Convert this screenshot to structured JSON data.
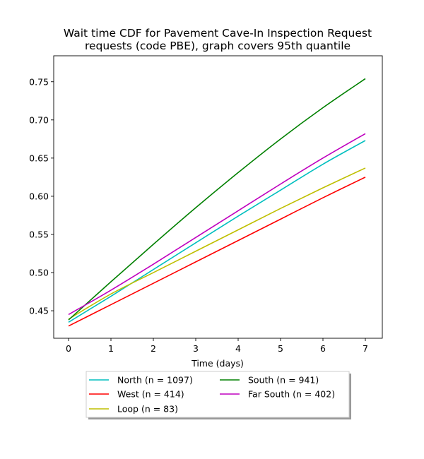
{
  "chart_data": {
    "type": "line",
    "title": "Wait time CDF for Pavement Cave-In Inspection Request\nrequests (code PBE), graph covers 95th quantile",
    "xlabel": "Time (days)",
    "ylabel": "",
    "xlim": [
      -0.35,
      7.4
    ],
    "ylim": [
      0.414,
      0.784
    ],
    "xticks": [
      0,
      1,
      2,
      3,
      4,
      5,
      6,
      7
    ],
    "yticks": [
      0.45,
      0.5,
      0.55,
      0.6,
      0.65,
      0.7,
      0.75
    ],
    "x": [
      0,
      1,
      2,
      3,
      4,
      5,
      6,
      7
    ],
    "grid": false,
    "legend_placement": "bottom-center-outside",
    "series": [
      {
        "name": "North (n = 1097)",
        "color": "#00bfbf",
        "values": [
          0.435,
          0.469,
          0.504,
          0.539,
          0.574,
          0.608,
          0.642,
          0.673
        ]
      },
      {
        "name": "West (n = 414)",
        "color": "#ff0000",
        "values": [
          0.43,
          0.458,
          0.486,
          0.514,
          0.542,
          0.57,
          0.598,
          0.625
        ]
      },
      {
        "name": "Loop (n = 83)",
        "color": "#bfbf00",
        "values": [
          0.439,
          0.472,
          0.5,
          0.528,
          0.556,
          0.584,
          0.611,
          0.637
        ]
      },
      {
        "name": "South (n = 941)",
        "color": "#008000",
        "values": [
          0.438,
          0.488,
          0.537,
          0.585,
          0.631,
          0.675,
          0.716,
          0.754
        ]
      },
      {
        "name": "Far South (n = 402)",
        "color": "#bf00bf",
        "values": [
          0.445,
          0.477,
          0.511,
          0.546,
          0.581,
          0.616,
          0.65,
          0.682
        ]
      }
    ]
  }
}
